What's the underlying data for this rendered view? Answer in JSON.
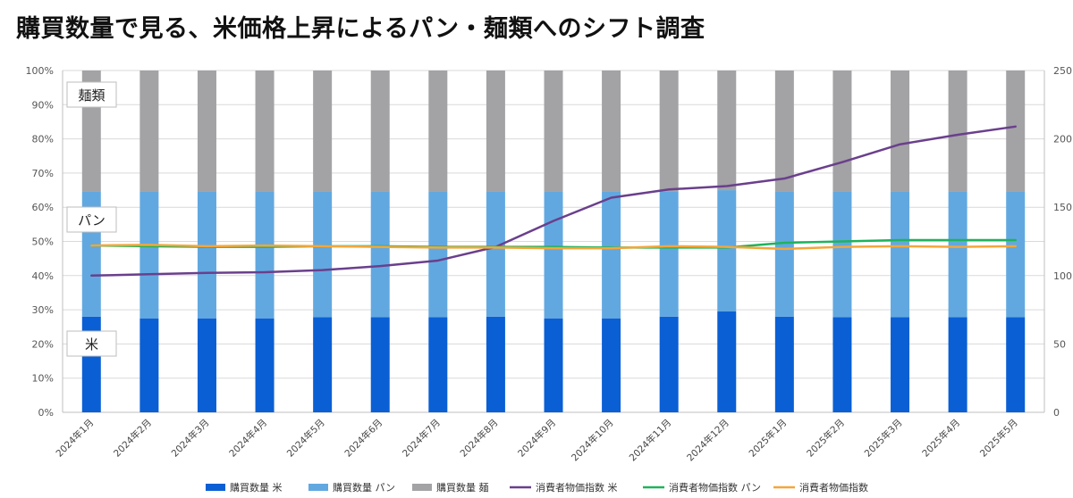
{
  "page_title": "購買数量で見る、米価格上昇によるパン・麺類へのシフト調査",
  "colors": {
    "rice_bar": "#0a5fd4",
    "bread_bar": "#62a8e0",
    "noodle_bar": "#a3a2a5",
    "cpi_rice": "#6a3f8c",
    "cpi_bread": "#1fb35c",
    "cpi_all": "#f4a63a",
    "grid": "#d9d9d9"
  },
  "chart_data": {
    "type": "bar",
    "stacked_percent": true,
    "categories": [
      "2024年1月",
      "2024年2月",
      "2024年3月",
      "2024年4月",
      "2024年5月",
      "2024年6月",
      "2024年7月",
      "2024年8月",
      "2024年9月",
      "2024年10月",
      "2024年11月",
      "2024年12月",
      "2025年1月",
      "2025年2月",
      "2025年3月",
      "2025年4月",
      "2025年5月"
    ],
    "left_axis": {
      "ticks": [
        "0%",
        "10%",
        "20%",
        "30%",
        "40%",
        "50%",
        "60%",
        "70%",
        "80%",
        "90%",
        "100%"
      ],
      "ylim": [
        0,
        100
      ]
    },
    "right_axis": {
      "ticks": [
        "0",
        "50",
        "100",
        "150",
        "200",
        "250"
      ],
      "ylim": [
        0,
        250
      ]
    },
    "series": [
      {
        "name": "購買数量 米",
        "type": "bar",
        "axis": "left",
        "values": [
          28,
          27.5,
          27.5,
          27.5,
          27.8,
          27.8,
          27.8,
          28,
          27.5,
          27.5,
          28,
          29.5,
          28,
          27.8,
          27.8,
          27.8,
          27.8
        ]
      },
      {
        "name": "購買数量 パン",
        "type": "bar",
        "axis": "left",
        "values": [
          36.5,
          37,
          37,
          37,
          36.7,
          36.7,
          36.7,
          36.5,
          37,
          37,
          36.5,
          35.5,
          36.5,
          36.7,
          36.7,
          36.7,
          36.7
        ]
      },
      {
        "name": "購買数量 麺",
        "type": "bar",
        "axis": "left",
        "values": [
          35.5,
          35.5,
          35.5,
          35.5,
          35.5,
          35.5,
          35.5,
          35.5,
          35.5,
          35.5,
          35.5,
          35,
          35.5,
          35.5,
          35.5,
          35.5,
          35.5
        ]
      },
      {
        "name": "消費者物価指数 米",
        "type": "line",
        "axis": "right",
        "values": [
          100,
          101,
          102,
          102.5,
          104,
          107,
          111,
          121,
          140,
          157,
          163,
          165.5,
          171,
          183,
          196,
          203,
          209
        ]
      },
      {
        "name": "消費者物価指数 パン",
        "type": "line",
        "axis": "right",
        "values": [
          122,
          121.5,
          121,
          121,
          121.5,
          121.5,
          121,
          121,
          121,
          120.5,
          120.5,
          120.5,
          124,
          125,
          126,
          126,
          126
        ]
      },
      {
        "name": "消費者物価指数",
        "type": "line",
        "axis": "right",
        "values": [
          122,
          122.5,
          121.5,
          122,
          121.5,
          121,
          120.5,
          120.5,
          120,
          120,
          121.5,
          121,
          119.5,
          121,
          121.5,
          121,
          121.5
        ]
      }
    ],
    "category_labels": {
      "noodle": "麺類",
      "bread": "パン",
      "rice": "米"
    }
  }
}
